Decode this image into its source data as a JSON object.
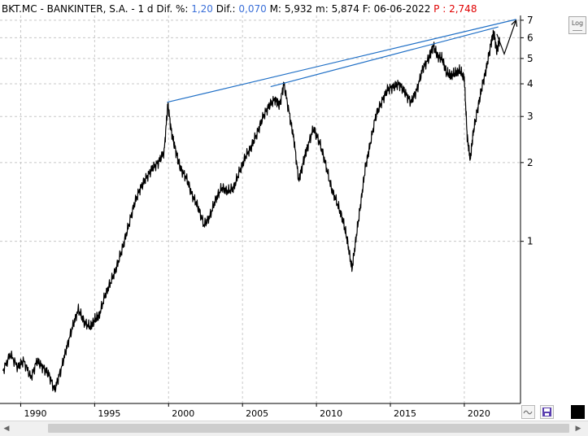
{
  "header": {
    "ticker": "BKT.MC - BANKINTER, S.A. -",
    "period": "1 d",
    "dif_pct_label": "Dif. %:",
    "dif_pct_value": "1,20",
    "dif_label": "Dif.:",
    "dif_value": "0,070",
    "max_label": "M:",
    "max_value": "5,932",
    "min_label": "m:",
    "min_value": "5,874",
    "date_label": "F:",
    "date_value": "06-06-2022",
    "p_label": "P :",
    "p_value": "2,748"
  },
  "controls": {
    "log_label": "Log",
    "wave_icon": "wave-icon",
    "save_icon": "floppy-disk-icon",
    "color_icon": "color-swatch-icon",
    "scroll_left_icon": "chevron-left-icon",
    "scroll_right_icon": "chevron-right-icon"
  },
  "colors": {
    "price_line": "#000000",
    "trend_line": "#1f6fc6",
    "dif_text": "#3a6fd8",
    "p_text": "#e00000",
    "grid": "#c8c8c8"
  },
  "chart_data": {
    "type": "line",
    "title": "BKT.MC - BANKINTER, S.A.",
    "xlabel": "",
    "ylabel": "",
    "y_scale": "log",
    "grid": true,
    "y_axis_side": "right",
    "xlim": [
      1988.6,
      2023.8
    ],
    "ylim": [
      0.24,
      7.3
    ],
    "x_ticks": [
      1990,
      1995,
      2000,
      2005,
      2010,
      2015,
      2020
    ],
    "x_tick_labels": [
      "1990",
      "1995",
      "2000",
      "2005",
      "2010",
      "2015",
      "2020"
    ],
    "y_ticks": [
      1,
      2,
      3,
      4,
      5,
      6,
      7
    ],
    "y_tick_labels": [
      "1",
      "2",
      "3",
      "4",
      "5",
      "6",
      "7"
    ],
    "price_series": {
      "name": "",
      "x": [
        1988.8,
        1989.3,
        1989.8,
        1990.2,
        1990.7,
        1991.1,
        1991.5,
        1991.9,
        1992.3,
        1992.7,
        1993.1,
        1993.5,
        1993.9,
        1994.3,
        1994.7,
        1995.0,
        1995.3,
        1995.7,
        1996.1,
        1996.5,
        1996.9,
        1997.3,
        1997.7,
        1998.1,
        1998.5,
        1998.9,
        1999.3,
        1999.7,
        1999.95,
        2000.2,
        2000.5,
        2000.8,
        2001.2,
        2001.6,
        2002.0,
        2002.4,
        2002.8,
        2003.2,
        2003.6,
        2004.0,
        2004.4,
        2004.8,
        2005.2,
        2005.6,
        2006.0,
        2006.4,
        2006.8,
        2007.2,
        2007.5,
        2007.8,
        2008.2,
        2008.5,
        2008.8,
        2009.1,
        2009.4,
        2009.8,
        2010.2,
        2010.6,
        2011.0,
        2011.4,
        2011.8,
        2012.1,
        2012.4,
        2012.7,
        2013.0,
        2013.3,
        2013.6,
        2014.0,
        2014.4,
        2014.8,
        2015.2,
        2015.6,
        2016.0,
        2016.4,
        2016.8,
        2017.2,
        2017.6,
        2017.9,
        2018.2,
        2018.5,
        2018.8,
        2019.1,
        2019.4,
        2019.7,
        2020.0,
        2020.2,
        2020.4,
        2020.6,
        2020.9,
        2021.2,
        2021.5,
        2021.8,
        2022.0,
        2022.2,
        2022.4
      ],
      "y": [
        0.32,
        0.37,
        0.33,
        0.35,
        0.3,
        0.35,
        0.33,
        0.31,
        0.27,
        0.32,
        0.39,
        0.47,
        0.55,
        0.49,
        0.47,
        0.5,
        0.52,
        0.62,
        0.7,
        0.8,
        0.95,
        1.15,
        1.4,
        1.6,
        1.75,
        1.9,
        2.0,
        2.2,
        3.35,
        2.6,
        2.2,
        1.9,
        1.75,
        1.5,
        1.35,
        1.15,
        1.25,
        1.45,
        1.6,
        1.55,
        1.6,
        1.85,
        2.1,
        2.3,
        2.6,
        3.0,
        3.3,
        3.5,
        3.3,
        4.0,
        3.0,
        2.4,
        1.7,
        2.0,
        2.3,
        2.7,
        2.4,
        2.0,
        1.6,
        1.4,
        1.2,
        1.0,
        0.78,
        1.05,
        1.4,
        1.9,
        2.3,
        3.0,
        3.4,
        3.8,
        3.9,
        4.0,
        3.7,
        3.4,
        3.8,
        4.6,
        5.0,
        5.6,
        5.1,
        5.0,
        4.4,
        4.3,
        4.4,
        4.5,
        4.2,
        2.5,
        2.05,
        2.6,
        3.2,
        3.9,
        4.6,
        5.7,
        6.3,
        5.3,
        6.0
      ]
    },
    "projection": {
      "name": "",
      "x": [
        2022.2,
        2022.7,
        2023.5
      ],
      "y": [
        6.2,
        5.2,
        7.0
      ]
    },
    "trend_lines": [
      {
        "name": "",
        "x": [
          1999.9,
          2023.5
        ],
        "y": [
          3.4,
          7.05
        ]
      },
      {
        "name": "",
        "x": [
          2006.9,
          2022.3
        ],
        "y": [
          3.9,
          6.6
        ]
      }
    ]
  }
}
